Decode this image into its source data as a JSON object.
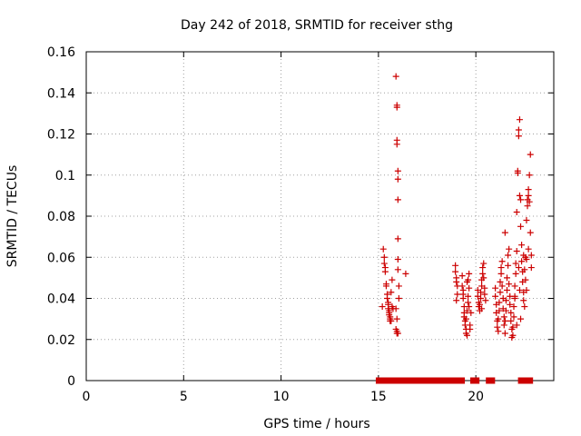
{
  "chart_data": {
    "type": "scatter",
    "title": "Day 242 of 2018, SRMTID for receiver sthg",
    "xlabel": "GPS time / hours",
    "ylabel": "SRMTID / TECUs",
    "xlim": [
      0,
      24
    ],
    "ylim": [
      0,
      0.16
    ],
    "x_ticks": [
      0,
      5,
      10,
      15,
      20
    ],
    "y_ticks": [
      0,
      0.02,
      0.04,
      0.06,
      0.08,
      0.1,
      0.12,
      0.14,
      0.16
    ],
    "x_tick_labels": [
      "0",
      "5",
      "10",
      "15",
      "20"
    ],
    "y_tick_labels": [
      "0",
      "0.02",
      "0.04",
      "0.06",
      "0.08",
      "0.1",
      "0.12",
      "0.14",
      "0.16"
    ],
    "grid": true,
    "legend": "none",
    "marker": "plus",
    "marker_color": "#cc0000",
    "points": [
      [
        15.2,
        0.036
      ],
      [
        15.25,
        0.064
      ],
      [
        15.3,
        0.06
      ],
      [
        15.3,
        0.057
      ],
      [
        15.35,
        0.055
      ],
      [
        15.35,
        0.053
      ],
      [
        15.4,
        0.047
      ],
      [
        15.4,
        0.046
      ],
      [
        15.45,
        0.042
      ],
      [
        15.45,
        0.04
      ],
      [
        15.5,
        0.038
      ],
      [
        15.5,
        0.037
      ],
      [
        15.5,
        0.035
      ],
      [
        15.55,
        0.034
      ],
      [
        15.55,
        0.033
      ],
      [
        15.55,
        0.032
      ],
      [
        15.6,
        0.031
      ],
      [
        15.6,
        0.03
      ],
      [
        15.6,
        0.029
      ],
      [
        15.65,
        0.029
      ],
      [
        15.65,
        0.043
      ],
      [
        15.7,
        0.049
      ],
      [
        15.7,
        0.036
      ],
      [
        15.75,
        0.035
      ],
      [
        15.9,
        0.148
      ],
      [
        15.95,
        0.134
      ],
      [
        15.95,
        0.133
      ],
      [
        15.95,
        0.117
      ],
      [
        15.95,
        0.115
      ],
      [
        16.0,
        0.102
      ],
      [
        16.0,
        0.098
      ],
      [
        16.0,
        0.088
      ],
      [
        16.0,
        0.069
      ],
      [
        16.0,
        0.059
      ],
      [
        16.0,
        0.054
      ],
      [
        16.05,
        0.046
      ],
      [
        16.05,
        0.04
      ],
      [
        15.9,
        0.035
      ],
      [
        15.95,
        0.03
      ],
      [
        15.9,
        0.025
      ],
      [
        15.95,
        0.023
      ],
      [
        16.0,
        0.023
      ],
      [
        15.95,
        0.024
      ],
      [
        16.4,
        0.052
      ],
      [
        18.95,
        0.056
      ],
      [
        18.95,
        0.053
      ],
      [
        19.0,
        0.05
      ],
      [
        19.0,
        0.048
      ],
      [
        19.05,
        0.046
      ],
      [
        19.05,
        0.042
      ],
      [
        19.0,
        0.039
      ],
      [
        19.3,
        0.051
      ],
      [
        19.3,
        0.046
      ],
      [
        19.35,
        0.044
      ],
      [
        19.35,
        0.042
      ],
      [
        19.35,
        0.04
      ],
      [
        19.4,
        0.036
      ],
      [
        19.4,
        0.033
      ],
      [
        19.4,
        0.031
      ],
      [
        19.45,
        0.029
      ],
      [
        19.45,
        0.027
      ],
      [
        19.5,
        0.025
      ],
      [
        19.5,
        0.023
      ],
      [
        19.55,
        0.022
      ],
      [
        19.5,
        0.03
      ],
      [
        19.55,
        0.034
      ],
      [
        19.6,
        0.038
      ],
      [
        19.6,
        0.041
      ],
      [
        19.65,
        0.045
      ],
      [
        19.6,
        0.049
      ],
      [
        19.65,
        0.052
      ],
      [
        19.7,
        0.027
      ],
      [
        19.7,
        0.025
      ],
      [
        19.75,
        0.033
      ],
      [
        19.55,
        0.048
      ],
      [
        19.65,
        0.036
      ],
      [
        20.1,
        0.044
      ],
      [
        20.1,
        0.041
      ],
      [
        20.15,
        0.038
      ],
      [
        20.15,
        0.036
      ],
      [
        20.2,
        0.034
      ],
      [
        20.2,
        0.037
      ],
      [
        20.25,
        0.04
      ],
      [
        20.25,
        0.043
      ],
      [
        20.3,
        0.046
      ],
      [
        20.3,
        0.049
      ],
      [
        20.35,
        0.052
      ],
      [
        20.35,
        0.055
      ],
      [
        20.4,
        0.057
      ],
      [
        20.4,
        0.05
      ],
      [
        20.45,
        0.045
      ],
      [
        20.45,
        0.042
      ],
      [
        20.5,
        0.039
      ],
      [
        20.3,
        0.035
      ],
      [
        21.0,
        0.045
      ],
      [
        21.0,
        0.041
      ],
      [
        21.05,
        0.037
      ],
      [
        21.05,
        0.033
      ],
      [
        21.1,
        0.029
      ],
      [
        21.1,
        0.026
      ],
      [
        21.15,
        0.024
      ],
      [
        21.15,
        0.03
      ],
      [
        21.2,
        0.034
      ],
      [
        21.2,
        0.038
      ],
      [
        21.25,
        0.043
      ],
      [
        21.25,
        0.048
      ],
      [
        21.3,
        0.052
      ],
      [
        21.3,
        0.055
      ],
      [
        21.35,
        0.058
      ],
      [
        21.35,
        0.046
      ],
      [
        21.4,
        0.04
      ],
      [
        21.4,
        0.035
      ],
      [
        21.45,
        0.031
      ],
      [
        21.45,
        0.027
      ],
      [
        21.5,
        0.023
      ],
      [
        21.5,
        0.029
      ],
      [
        21.55,
        0.034
      ],
      [
        21.55,
        0.039
      ],
      [
        21.6,
        0.044
      ],
      [
        21.6,
        0.05
      ],
      [
        21.65,
        0.056
      ],
      [
        21.65,
        0.061
      ],
      [
        21.5,
        0.072
      ],
      [
        21.7,
        0.064
      ],
      [
        21.7,
        0.047
      ],
      [
        21.75,
        0.041
      ],
      [
        21.75,
        0.037
      ],
      [
        21.8,
        0.033
      ],
      [
        21.8,
        0.029
      ],
      [
        21.85,
        0.025
      ],
      [
        21.85,
        0.021
      ],
      [
        21.9,
        0.022
      ],
      [
        21.9,
        0.026
      ],
      [
        21.95,
        0.031
      ],
      [
        21.95,
        0.036
      ],
      [
        22.0,
        0.041
      ],
      [
        22.0,
        0.046
      ],
      [
        22.05,
        0.052
      ],
      [
        22.05,
        0.057
      ],
      [
        22.1,
        0.063
      ],
      [
        22.1,
        0.082
      ],
      [
        22.15,
        0.101
      ],
      [
        22.15,
        0.102
      ],
      [
        22.2,
        0.119
      ],
      [
        22.2,
        0.122
      ],
      [
        22.25,
        0.127
      ],
      [
        22.25,
        0.09
      ],
      [
        22.3,
        0.088
      ],
      [
        22.3,
        0.075
      ],
      [
        22.35,
        0.066
      ],
      [
        22.35,
        0.058
      ],
      [
        22.4,
        0.053
      ],
      [
        22.4,
        0.048
      ],
      [
        22.45,
        0.043
      ],
      [
        22.45,
        0.039
      ],
      [
        22.5,
        0.036
      ],
      [
        22.3,
        0.03
      ],
      [
        22.1,
        0.027
      ],
      [
        22.0,
        0.04
      ],
      [
        22.5,
        0.054
      ],
      [
        22.55,
        0.06
      ],
      [
        22.55,
        0.049
      ],
      [
        22.6,
        0.044
      ],
      [
        22.6,
        0.078
      ],
      [
        22.65,
        0.085
      ],
      [
        22.65,
        0.088
      ],
      [
        22.7,
        0.09
      ],
      [
        22.7,
        0.093
      ],
      [
        22.75,
        0.087
      ],
      [
        22.75,
        0.1
      ],
      [
        22.8,
        0.11
      ],
      [
        22.8,
        0.072
      ],
      [
        22.85,
        0.061
      ],
      [
        22.85,
        0.055
      ],
      [
        22.7,
        0.064
      ],
      [
        22.6,
        0.059
      ],
      [
        22.45,
        0.061
      ],
      [
        22.2,
        0.055
      ],
      [
        22.25,
        0.044
      ]
    ],
    "zero_points": [
      15.05,
      15.15,
      15.25,
      15.45,
      15.6,
      15.75,
      15.9,
      16.05,
      16.2,
      16.3,
      16.45,
      16.6,
      16.75,
      16.9,
      17.05,
      17.2,
      17.35,
      17.5,
      17.65,
      17.8,
      17.95,
      18.1,
      18.25,
      18.4,
      18.55,
      18.7,
      18.85,
      19.15,
      19.25,
      19.9,
      20.0,
      20.7,
      20.8,
      22.35,
      22.5,
      22.75
    ]
  }
}
